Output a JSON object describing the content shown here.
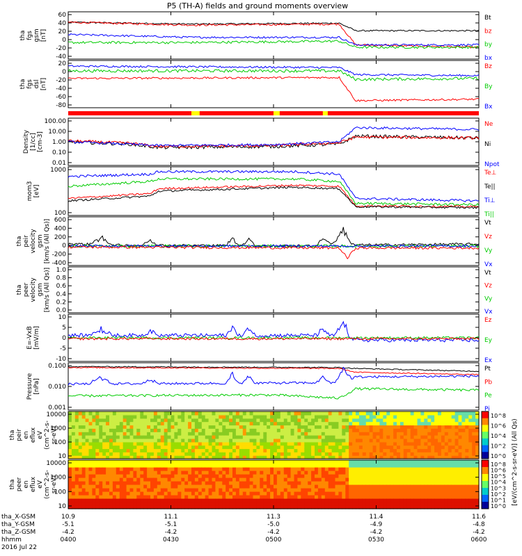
{
  "title": "P5 (TH-A) fields and ground moments overview",
  "colors": {
    "black": "#000000",
    "red": "#ff0000",
    "green": "#00cc00",
    "blue": "#0000ff",
    "yellow": "#ffff00"
  },
  "panels": [
    {
      "id": "fgs_gsm",
      "ylabel": [
        "tha",
        "fgs",
        "gsm",
        "[nT]"
      ],
      "ticks": [
        "60",
        "40",
        "20",
        "0",
        "-20",
        "-40"
      ],
      "legend": [
        {
          "t": "Bt",
          "c": "black"
        },
        {
          "t": "bz",
          "c": "red"
        },
        {
          "t": "by",
          "c": "green"
        },
        {
          "t": "bx",
          "c": "blue"
        }
      ]
    },
    {
      "id": "fgs_dsl",
      "ylabel": [
        "tha",
        "fgs",
        "dsl",
        "[nT]"
      ],
      "ticks": [
        "20",
        "0",
        "-20",
        "-40",
        "-60",
        "-80"
      ],
      "legend": [
        {
          "t": "Bz",
          "c": "red"
        },
        {
          "t": "By",
          "c": "green"
        },
        {
          "t": "Bx",
          "c": "blue"
        }
      ]
    },
    {
      "id": "density",
      "ylabel": [
        "Density",
        "[1/cc]",
        "[cm-3]"
      ],
      "ticks": [
        "100.00",
        "10.00",
        "1.00",
        "0.10",
        "0.01"
      ],
      "legend": [
        {
          "t": "Ne",
          "c": "red"
        },
        {
          "t": "Ni",
          "c": "black"
        },
        {
          "t": "Npot",
          "c": "blue"
        }
      ]
    },
    {
      "id": "temp",
      "ylabel": [
        "mom3",
        "[eV]"
      ],
      "ticks": [
        "1000",
        "100"
      ],
      "legend": [
        {
          "t": "Te⊥",
          "c": "red"
        },
        {
          "t": "Te||",
          "c": "black"
        },
        {
          "t": "Ti⊥",
          "c": "blue"
        },
        {
          "t": "Ti||",
          "c": "green"
        }
      ]
    },
    {
      "id": "peir_vel",
      "ylabel": [
        "tha",
        "peir",
        "velocity",
        "gsm",
        "[km/s (All Qs)]"
      ],
      "ticks": [
        "600",
        "400",
        "200",
        "0",
        "-200",
        "-400"
      ],
      "legend": [
        {
          "t": "Vt",
          "c": "black"
        },
        {
          "t": "Vz",
          "c": "red"
        },
        {
          "t": "Vy",
          "c": "green"
        },
        {
          "t": "Vx",
          "c": "blue"
        }
      ]
    },
    {
      "id": "peer_vel",
      "ylabel": [
        "tha",
        "peer",
        "velocity",
        "gsm",
        "[km/s (All Qs)]"
      ],
      "ticks": [
        "1.0",
        "0.8",
        "0.6",
        "0.4",
        "0.2",
        "0.0"
      ],
      "legend": [
        {
          "t": "Vt",
          "c": "black"
        },
        {
          "t": "Vz",
          "c": "red"
        },
        {
          "t": "Vy",
          "c": "green"
        },
        {
          "t": "Vx",
          "c": "blue"
        }
      ]
    },
    {
      "id": "efield",
      "ylabel": [
        "E=-VxB",
        "[mV/m]"
      ],
      "ticks": [
        "10",
        "5",
        "0",
        "-5",
        "-10"
      ],
      "legend": [
        {
          "t": "Ez",
          "c": "red"
        },
        {
          "t": "Ey",
          "c": "green"
        },
        {
          "t": "Ex",
          "c": "blue"
        }
      ]
    },
    {
      "id": "pressure",
      "ylabel": [
        "Pressure",
        "[nPa]"
      ],
      "ticks": [
        "0.100",
        "0.010",
        "0.001"
      ],
      "legend": [
        {
          "t": "Pt",
          "c": "black"
        },
        {
          "t": "Pb",
          "c": "red"
        },
        {
          "t": "Pe",
          "c": "green"
        },
        {
          "t": "Pi",
          "c": "blue"
        }
      ]
    },
    {
      "id": "peir_spec",
      "ylabel": [
        "tha",
        "peir",
        "en",
        "eflux",
        "eV",
        "(cm^2-s-",
        "sr-eV)"
      ],
      "ticks": [
        "10000",
        "1000",
        "100",
        "10"
      ]
    },
    {
      "id": "peer_spec",
      "ylabel": [
        "tha",
        "peer",
        "en",
        "eflux",
        "eV",
        "(cm^2-s-",
        "sr-eV)"
      ],
      "ticks": [
        "10000",
        "1000",
        "100",
        "10"
      ]
    }
  ],
  "colorbar": {
    "label": "[eV/(cm^2-s-sr-eV)] (All Qs)",
    "ticks_upper": [
      "10^8",
      "10^6",
      "10^4",
      "10^2",
      "10^0"
    ],
    "ticks_lower": [
      "10^8",
      "10^6",
      "10^5",
      "10^4",
      "10^3",
      "10^2",
      "10^1",
      "10^0"
    ]
  },
  "xaxis": {
    "rows": [
      {
        "label": "tha_X-GSM",
        "values": [
          "10.9",
          "11.1",
          "11.3",
          "11.4",
          "11.6"
        ]
      },
      {
        "label": "tha_Y-GSM",
        "values": [
          "-5.1",
          "-5.1",
          "-5.0",
          "-4.9",
          "-4.8"
        ]
      },
      {
        "label": "tha_Z-GSM",
        "values": [
          "-4.2",
          "-4.2",
          "-4.2",
          "-4.2",
          "-4.2"
        ]
      },
      {
        "label": "hhmm",
        "values": [
          "0400",
          "0430",
          "0500",
          "0530",
          "0600"
        ]
      }
    ],
    "date": "2016 Jul 22"
  },
  "chart_data": {
    "type": "line",
    "title": "P5 (TH-A) fields and ground moments overview",
    "x": [
      "0400",
      "0430",
      "0500",
      "0530",
      "0600"
    ],
    "series": [
      {
        "name": "Bt",
        "values": [
          40,
          32,
          33,
          30,
          30
        ]
      },
      {
        "name": "bz",
        "values": [
          38,
          32,
          30,
          -18,
          -20
        ]
      },
      {
        "name": "by",
        "values": [
          -5,
          -5,
          -2,
          -18,
          -20
        ]
      },
      {
        "name": "bx",
        "values": [
          15,
          8,
          8,
          -15,
          -15
        ]
      },
      {
        "name": "Ne",
        "values": [
          2,
          0.3,
          0.5,
          5,
          5
        ]
      },
      {
        "name": "Npot",
        "values": [
          2,
          0.4,
          0.5,
          20,
          15
        ]
      },
      {
        "name": "Ti⊥",
        "values": [
          2500,
          3000,
          2500,
          200,
          150
        ]
      },
      {
        "name": "Vt",
        "values": [
          100,
          50,
          150,
          50,
          60
        ]
      }
    ]
  }
}
